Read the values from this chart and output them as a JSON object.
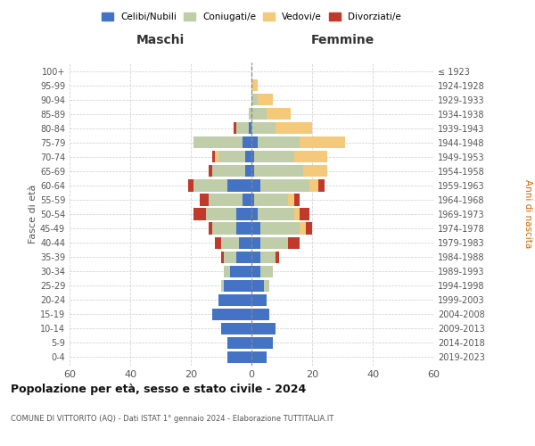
{
  "age_groups": [
    "0-4",
    "5-9",
    "10-14",
    "15-19",
    "20-24",
    "25-29",
    "30-34",
    "35-39",
    "40-44",
    "45-49",
    "50-54",
    "55-59",
    "60-64",
    "65-69",
    "70-74",
    "75-79",
    "80-84",
    "85-89",
    "90-94",
    "95-99",
    "100+"
  ],
  "birth_years": [
    "2019-2023",
    "2014-2018",
    "2009-2013",
    "2004-2008",
    "1999-2003",
    "1994-1998",
    "1989-1993",
    "1984-1988",
    "1979-1983",
    "1974-1978",
    "1969-1973",
    "1964-1968",
    "1959-1963",
    "1954-1958",
    "1949-1953",
    "1944-1948",
    "1939-1943",
    "1934-1938",
    "1929-1933",
    "1924-1928",
    "≤ 1923"
  ],
  "colors": {
    "celibe": "#4472C4",
    "coniugato": "#BFCEA8",
    "vedovo": "#F5C97A",
    "divorziato": "#C0392B"
  },
  "maschi": {
    "celibe": [
      8,
      8,
      10,
      13,
      11,
      9,
      7,
      5,
      4,
      5,
      5,
      3,
      8,
      2,
      2,
      3,
      1,
      0,
      0,
      0,
      0
    ],
    "coniugato": [
      0,
      0,
      0,
      0,
      0,
      1,
      2,
      4,
      6,
      8,
      10,
      11,
      11,
      11,
      9,
      16,
      4,
      1,
      0,
      0,
      0
    ],
    "vedovo": [
      0,
      0,
      0,
      0,
      0,
      0,
      0,
      0,
      0,
      0,
      0,
      0,
      0,
      0,
      1,
      0,
      0,
      0,
      0,
      0,
      0
    ],
    "divorziato": [
      0,
      0,
      0,
      0,
      0,
      0,
      0,
      1,
      2,
      1,
      4,
      3,
      2,
      1,
      1,
      0,
      1,
      0,
      0,
      0,
      0
    ]
  },
  "femmine": {
    "nubile": [
      5,
      7,
      8,
      6,
      5,
      4,
      3,
      3,
      3,
      3,
      2,
      1,
      3,
      1,
      1,
      2,
      0,
      0,
      0,
      0,
      0
    ],
    "coniugata": [
      0,
      0,
      0,
      0,
      0,
      2,
      4,
      5,
      9,
      13,
      12,
      11,
      16,
      16,
      13,
      14,
      8,
      5,
      2,
      0,
      0
    ],
    "vedova": [
      0,
      0,
      0,
      0,
      0,
      0,
      0,
      0,
      0,
      2,
      2,
      2,
      3,
      8,
      11,
      15,
      12,
      8,
      5,
      2,
      0
    ],
    "divorziata": [
      0,
      0,
      0,
      0,
      0,
      0,
      0,
      1,
      4,
      2,
      3,
      2,
      2,
      0,
      0,
      0,
      0,
      0,
      0,
      0,
      0
    ]
  },
  "xlim": 60,
  "title": "Popolazione per età, sesso e stato civile - 2024",
  "subtitle": "COMUNE DI VITTORITO (AQ) - Dati ISTAT 1° gennaio 2024 - Elaborazione TUTTITALIA.IT",
  "ylabel_left": "Fasce di età",
  "ylabel_right": "Anni di nascita",
  "xlabel_maschi": "Maschi",
  "xlabel_femmine": "Femmine",
  "legend_labels": [
    "Celibi/Nubili",
    "Coniugati/e",
    "Vedovi/e",
    "Divorziati/e"
  ],
  "background_color": "#ffffff",
  "grid_color": "#cccccc"
}
